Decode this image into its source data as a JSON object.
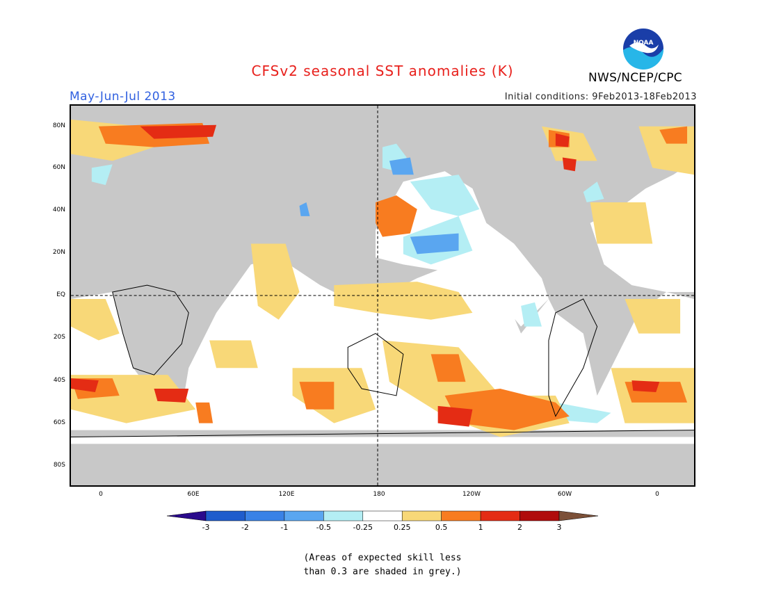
{
  "title": "CFSv2 seasonal SST anomalies (K)",
  "period": "May-Jun-Jul 2013",
  "initial_conditions": "Initial conditions: 9Feb2013-18Feb2013",
  "agency": "NWS/NCEP/CPC",
  "logo_text": "NOAA",
  "lat_labels": [
    "80N",
    "60N",
    "40N",
    "20N",
    "EQ",
    "20S",
    "40S",
    "60S",
    "80S"
  ],
  "lon_labels": [
    "0",
    "60E",
    "120E",
    "180",
    "120W",
    "60W",
    "0"
  ],
  "colorbar": {
    "ticks": [
      "-3",
      "-2",
      "-1",
      "-0.5",
      "-0.25",
      "0.25",
      "0.5",
      "1",
      "2",
      "3"
    ],
    "colors": [
      "#2a0a8c",
      "#1f5ccc",
      "#3a82e6",
      "#5aa6f0",
      "#b4eef4",
      "#ffffff",
      "#f8d878",
      "#f87c20",
      "#e42c14",
      "#b00c0c",
      "#7c5038"
    ]
  },
  "colors": {
    "land": "#c8c8c8",
    "ocean_neutral": "#ffffff",
    "warm_weak": "#f8d878",
    "warm_mid": "#f87c20",
    "warm_strong": "#e42c14",
    "warm_extreme": "#b00c0c",
    "cool_weak": "#b4eef4",
    "cool_mid": "#5aa6f0"
  },
  "note_line1": "(Areas of expected skill less",
  "note_line2": "than 0.3 are shaded in grey.)"
}
